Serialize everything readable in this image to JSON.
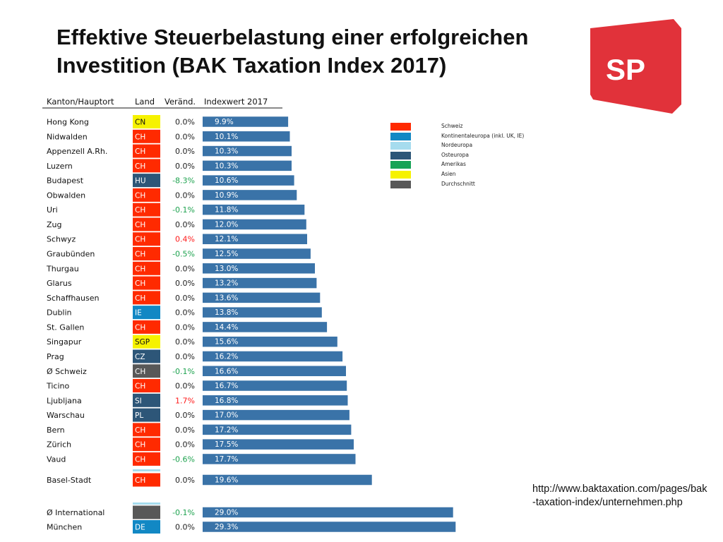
{
  "title": {
    "line1": "Effektive Steuerbelastung einer erfolgreichen",
    "line2": "Investition (BAK Taxation Index 2017)"
  },
  "logo": {
    "text": "SP",
    "color": "#e1323a"
  },
  "source_url": "http://www.baktaxation.com/pages/bak-taxation-index/unternehmen.php",
  "colors": {
    "bar": "#3a73a8",
    "Schweiz": "#ff2a00",
    "Kontinentaleuropa": "#1288c4",
    "Nordeuropa": "#a6dcee",
    "Osteuropa": "#2d5678",
    "Amerikas": "#17a356",
    "Asien": "#f6f200",
    "Durchschnitt": "#585858",
    "negative": "#1fa350",
    "positive": "#ff1a1a",
    "neutral": "#222222"
  },
  "legend": [
    {
      "label": "Schweiz",
      "color": "#ff2a00"
    },
    {
      "label": "Kontinentaleuropa (inkl. UK, IE)",
      "color": "#1288c4"
    },
    {
      "label": "Nordeuropa",
      "color": "#a6dcee"
    },
    {
      "label": "Osteuropa",
      "color": "#2d5678"
    },
    {
      "label": "Amerikas",
      "color": "#17a356"
    },
    {
      "label": "Asien",
      "color": "#f6f200"
    },
    {
      "label": "Durchschnitt",
      "color": "#585858"
    }
  ],
  "chart_data": {
    "type": "bar",
    "orientation": "horizontal",
    "columns": [
      "Kanton/Hauptort",
      "Land",
      "Veränd.",
      "Indexwert 2017"
    ],
    "xlim": [
      0,
      30
    ],
    "grid": false,
    "legend_position": "right",
    "rows": [
      {
        "name": "Hong Kong",
        "land": "CN",
        "region": "Asien",
        "change": "0.0%",
        "value": 9.9,
        "label": "9.9%"
      },
      {
        "name": "Nidwalden",
        "land": "CH",
        "region": "Schweiz",
        "change": "0.0%",
        "value": 10.1,
        "label": "10.1%"
      },
      {
        "name": "Appenzell A.Rh.",
        "land": "CH",
        "region": "Schweiz",
        "change": "0.0%",
        "value": 10.3,
        "label": "10.3%"
      },
      {
        "name": "Luzern",
        "land": "CH",
        "region": "Schweiz",
        "change": "0.0%",
        "value": 10.3,
        "label": "10.3%"
      },
      {
        "name": "Budapest",
        "land": "HU",
        "region": "Osteuropa",
        "change": "-8.3%",
        "value": 10.6,
        "label": "10.6%"
      },
      {
        "name": "Obwalden",
        "land": "CH",
        "region": "Schweiz",
        "change": "0.0%",
        "value": 10.9,
        "label": "10.9%"
      },
      {
        "name": "Uri",
        "land": "CH",
        "region": "Schweiz",
        "change": "-0.1%",
        "value": 11.8,
        "label": "11.8%"
      },
      {
        "name": "Zug",
        "land": "CH",
        "region": "Schweiz",
        "change": "0.0%",
        "value": 12.0,
        "label": "12.0%"
      },
      {
        "name": "Schwyz",
        "land": "CH",
        "region": "Schweiz",
        "change": "0.4%",
        "value": 12.1,
        "label": "12.1%"
      },
      {
        "name": "Graubünden",
        "land": "CH",
        "region": "Schweiz",
        "change": "-0.5%",
        "value": 12.5,
        "label": "12.5%"
      },
      {
        "name": "Thurgau",
        "land": "CH",
        "region": "Schweiz",
        "change": "0.0%",
        "value": 13.0,
        "label": "13.0%"
      },
      {
        "name": "Glarus",
        "land": "CH",
        "region": "Schweiz",
        "change": "0.0%",
        "value": 13.2,
        "label": "13.2%"
      },
      {
        "name": "Schaffhausen",
        "land": "CH",
        "region": "Schweiz",
        "change": "0.0%",
        "value": 13.6,
        "label": "13.6%"
      },
      {
        "name": "Dublin",
        "land": "IE",
        "region": "Kontinentaleuropa",
        "change": "0.0%",
        "value": 13.8,
        "label": "13.8%"
      },
      {
        "name": "St. Gallen",
        "land": "CH",
        "region": "Schweiz",
        "change": "0.0%",
        "value": 14.4,
        "label": "14.4%"
      },
      {
        "name": "Singapur",
        "land": "SGP",
        "region": "Asien",
        "change": "0.0%",
        "value": 15.6,
        "label": "15.6%"
      },
      {
        "name": "Prag",
        "land": "CZ",
        "region": "Osteuropa",
        "change": "0.0%",
        "value": 16.2,
        "label": "16.2%"
      },
      {
        "name": "Ø Schweiz",
        "land": "CH",
        "region": "Durchschnitt",
        "change": "-0.1%",
        "value": 16.6,
        "label": "16.6%"
      },
      {
        "name": "Ticino",
        "land": "CH",
        "region": "Schweiz",
        "change": "0.0%",
        "value": 16.7,
        "label": "16.7%"
      },
      {
        "name": "Ljubljana",
        "land": "SI",
        "region": "Osteuropa",
        "change": "1.7%",
        "value": 16.8,
        "label": "16.8%"
      },
      {
        "name": "Warschau",
        "land": "PL",
        "region": "Osteuropa",
        "change": "0.0%",
        "value": 17.0,
        "label": "17.0%"
      },
      {
        "name": "Bern",
        "land": "CH",
        "region": "Schweiz",
        "change": "0.0%",
        "value": 17.2,
        "label": "17.2%"
      },
      {
        "name": "Zürich",
        "land": "CH",
        "region": "Schweiz",
        "change": "0.0%",
        "value": 17.5,
        "label": "17.5%"
      },
      {
        "name": "Vaud",
        "land": "CH",
        "region": "Schweiz",
        "change": "-0.6%",
        "value": 17.7,
        "label": "17.7%"
      },
      {
        "name": "Basel-Stadt",
        "land": "CH",
        "region": "Schweiz",
        "change": "0.0%",
        "value": 19.6,
        "label": "19.6%"
      },
      {
        "name": "Ø International",
        "land": "",
        "region": "Durchschnitt",
        "change": "-0.1%",
        "value": 29.0,
        "label": "29.0%"
      },
      {
        "name": "München",
        "land": "DE",
        "region": "Kontinentaleuropa",
        "change": "0.0%",
        "value": 29.3,
        "label": "29.3%"
      }
    ]
  }
}
